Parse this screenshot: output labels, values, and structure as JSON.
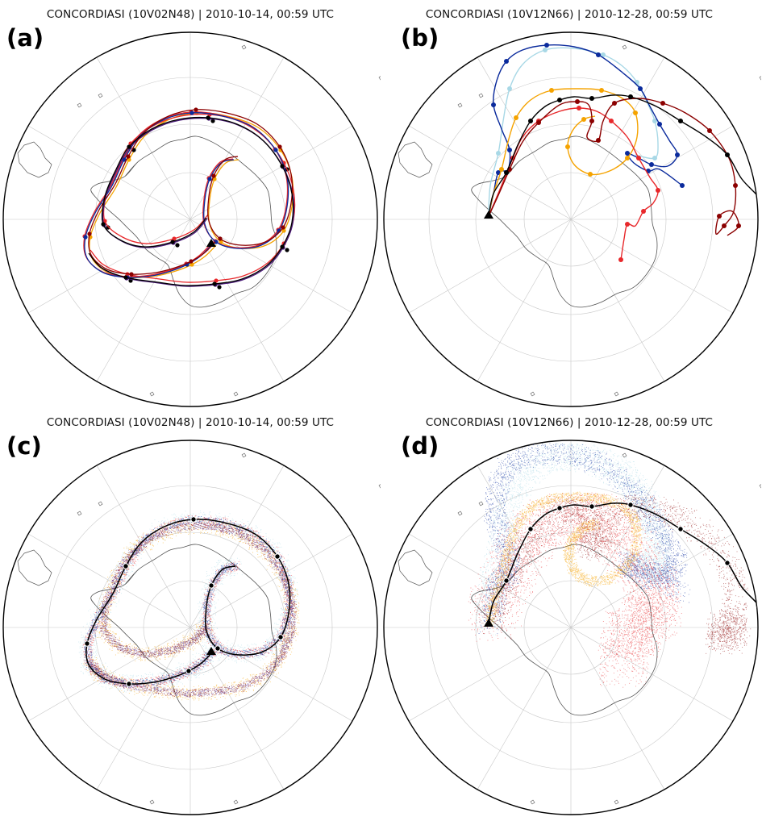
{
  "panels": [
    {
      "id": "a",
      "label": "(a)",
      "title": "CONCORDIASI (10V02N48) | 2010-10-14, 00:59 UTC",
      "style": "lines"
    },
    {
      "id": "b",
      "label": "(b)",
      "title": "CONCORDIASI (10V12N66) | 2010-12-28, 00:59 UTC",
      "style": "lines"
    },
    {
      "id": "c",
      "label": "(c)",
      "title": "CONCORDIASI (10V02N48) | 2010-10-14, 00:59 UTC",
      "style": "ensemble"
    },
    {
      "id": "d",
      "label": "(d)",
      "title": "CONCORDIASI (10V12N66) | 2010-12-28, 00:59 UTC",
      "style": "ensemble"
    }
  ],
  "colors": {
    "observed": "#000000",
    "dark_red": "#8b0000",
    "red": "#e8282b",
    "orange": "#f5a300",
    "light_blue": "#a8d8e6",
    "dark_blue": "#0a2a9c",
    "purple": "#4b1a7a",
    "coast": "#555555",
    "grid": "#c8c8c8"
  }
}
